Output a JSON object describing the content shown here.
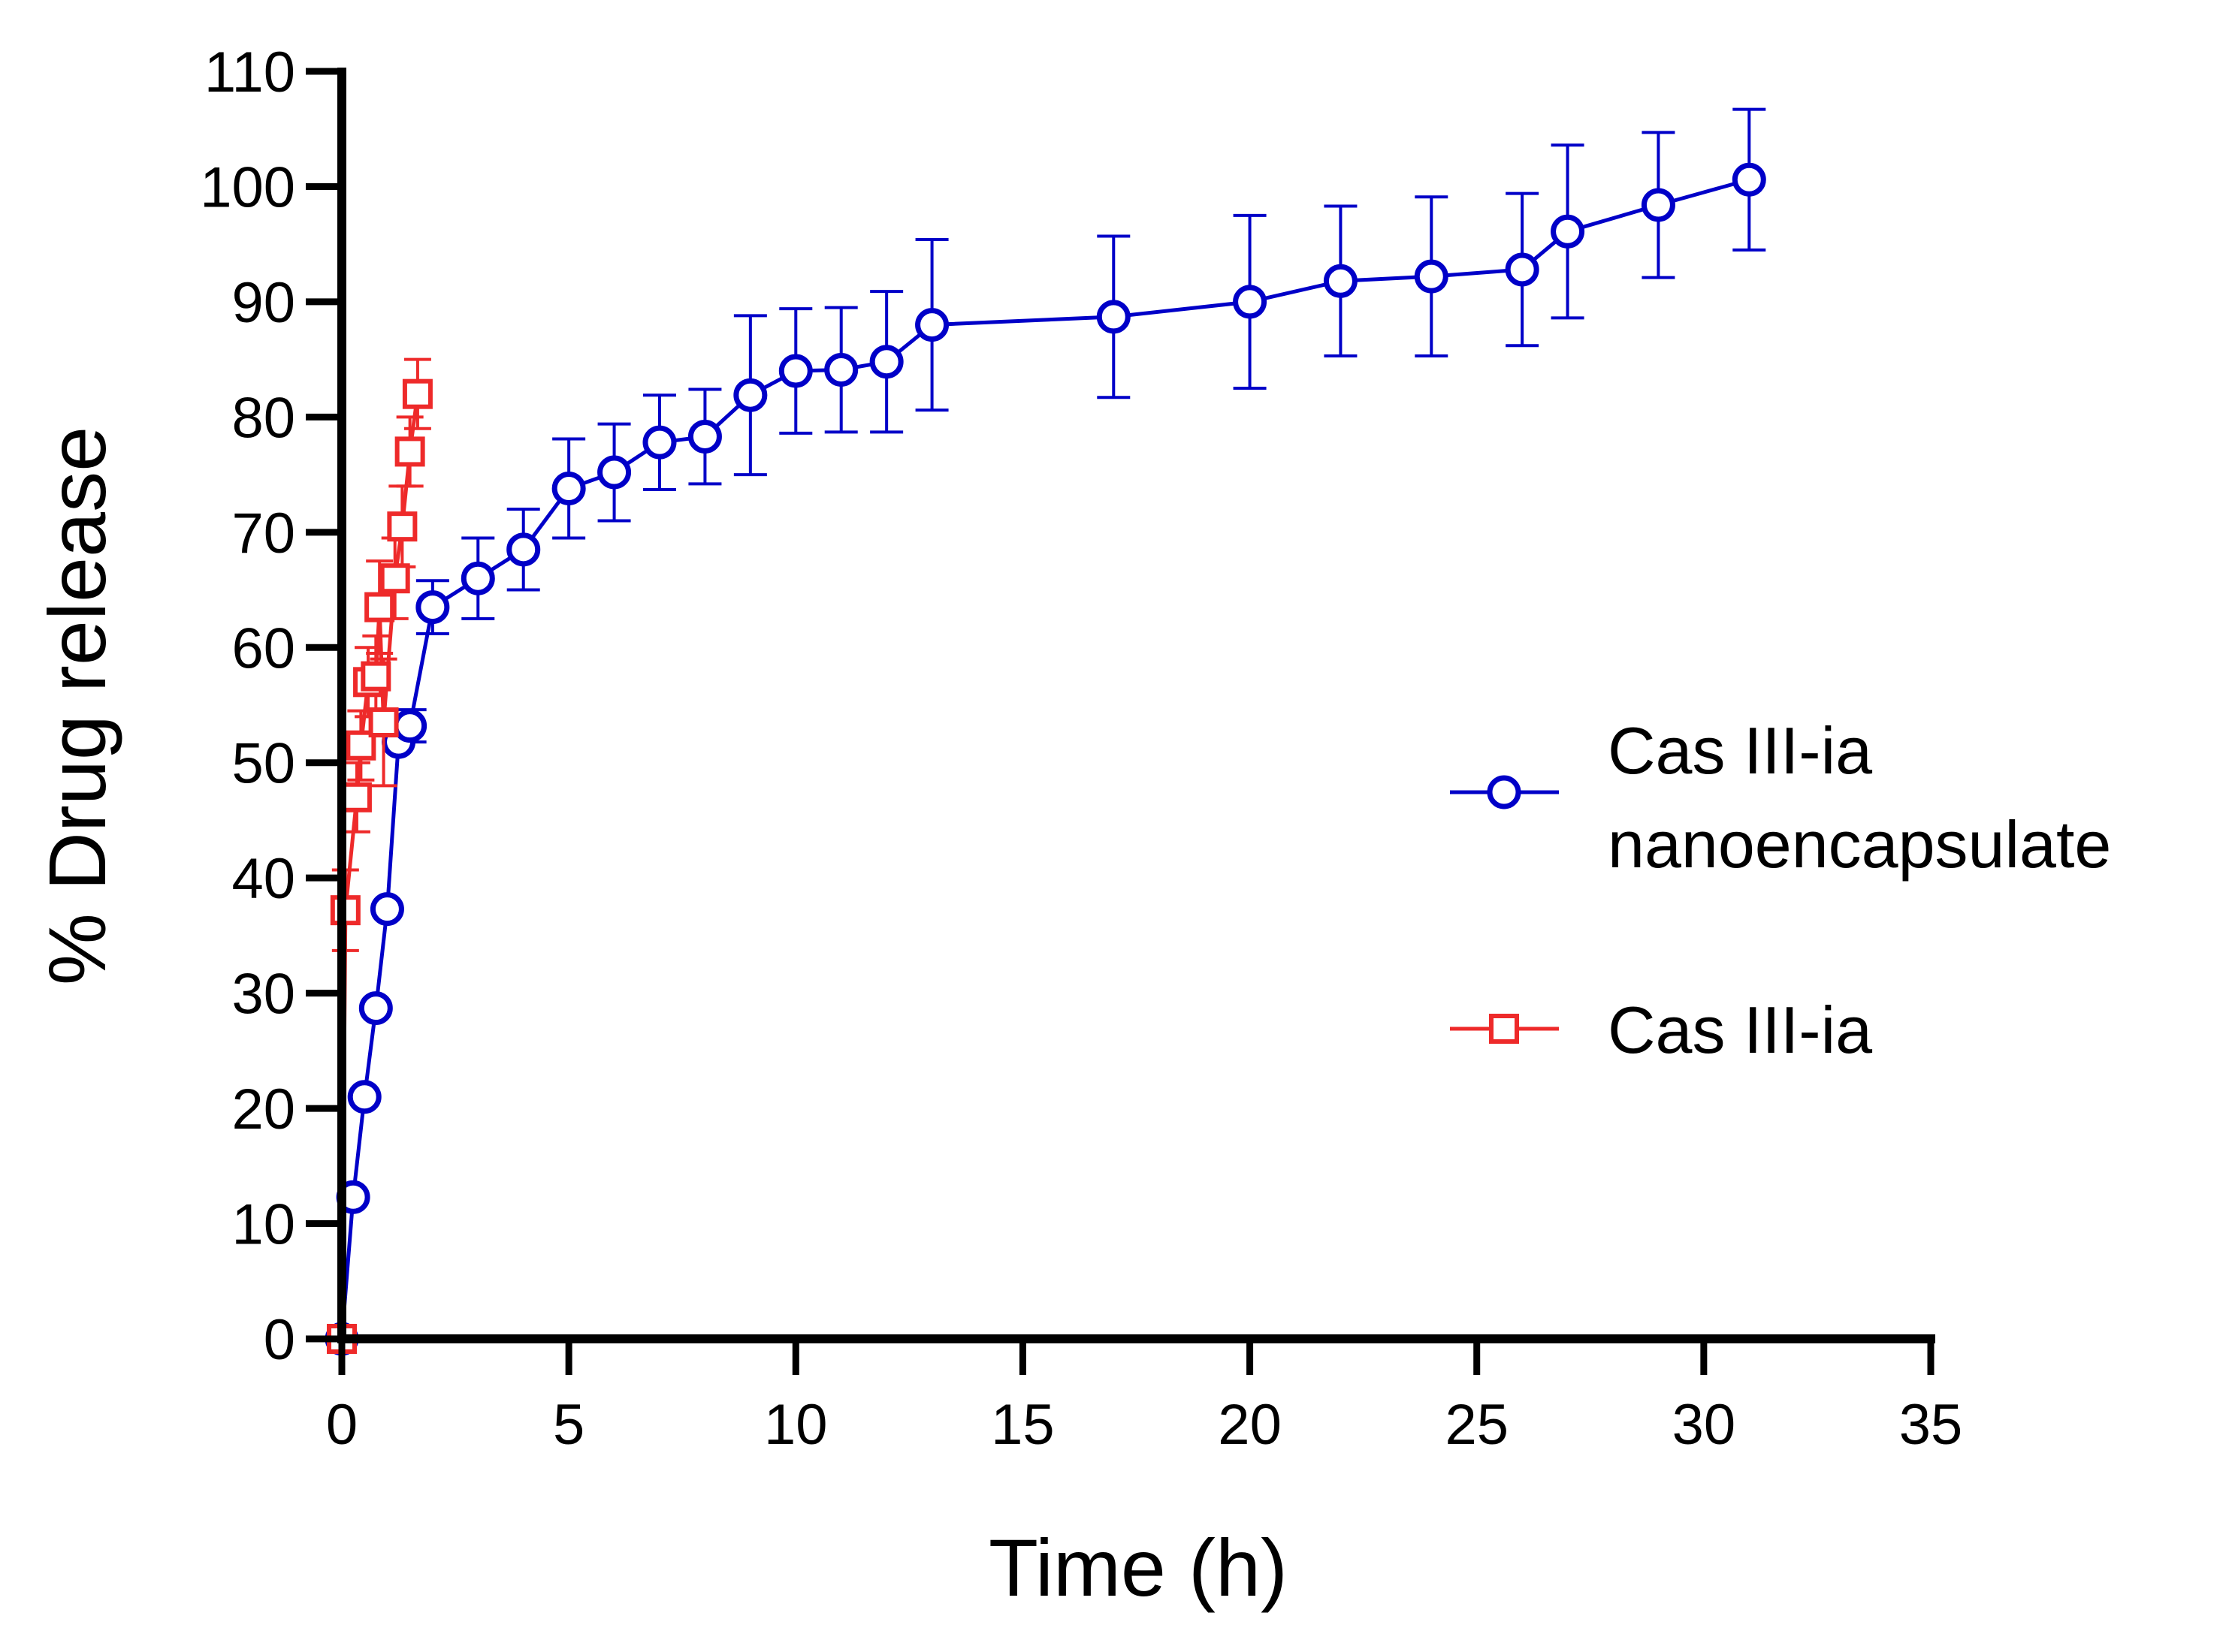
{
  "chart_data": {
    "type": "line",
    "title": "",
    "xlabel": "Time (h)",
    "ylabel": "% Drug release",
    "xlim": [
      0,
      35
    ],
    "ylim": [
      0,
      110
    ],
    "xticks": [
      0,
      5,
      10,
      15,
      20,
      25,
      30,
      35
    ],
    "yticks": [
      0,
      10,
      20,
      30,
      40,
      50,
      60,
      70,
      80,
      90,
      100,
      110
    ],
    "grid": false,
    "legend_position": "right",
    "series": [
      {
        "name": "Cas III-ia nanoencapsulate",
        "legend_lines": [
          "Cas III-ia",
          "nanoencapsulate"
        ],
        "color": "#0000c8",
        "marker": "circle",
        "x": [
          0,
          0.25,
          0.5,
          0.75,
          1,
          1.25,
          1.5,
          2,
          3,
          4,
          5,
          6,
          7,
          8,
          9,
          10,
          11,
          12,
          13,
          17,
          20,
          22,
          24,
          26,
          27,
          29,
          31
        ],
        "y": [
          0,
          12.3,
          21,
          28.7,
          37.3,
          51.8,
          53.2,
          63.5,
          66,
          68.5,
          73.8,
          75.2,
          77.8,
          78.3,
          81.9,
          84,
          84.1,
          84.8,
          88,
          88.7,
          90,
          91.8,
          92.2,
          92.8,
          96.1,
          98.4,
          100.6
        ],
        "err": [
          0,
          0,
          0,
          0,
          0,
          0,
          1.4,
          2.3,
          3.5,
          3.5,
          4.3,
          4.2,
          4.1,
          4.1,
          6.9,
          5.4,
          5.4,
          6.1,
          7.4,
          7,
          7.5,
          6.5,
          6.9,
          6.6,
          7.5,
          6.3,
          6.1
        ]
      },
      {
        "name": "Cas III-ia",
        "legend_lines": [
          "Cas III-ia"
        ],
        "color": "#ee2a2a",
        "marker": "square",
        "x": [
          0,
          0.08,
          0.33,
          0.42,
          0.58,
          0.75,
          0.83,
          0.92,
          1.17,
          1.33,
          1.5,
          1.67
        ],
        "y": [
          0,
          37.2,
          47,
          51.5,
          57,
          57.5,
          63.5,
          53.5,
          66,
          70.5,
          77,
          82
        ],
        "err": [
          0,
          3.5,
          3,
          3,
          3,
          3.5,
          4,
          5.5,
          3.5,
          3.5,
          3,
          3
        ]
      }
    ]
  }
}
